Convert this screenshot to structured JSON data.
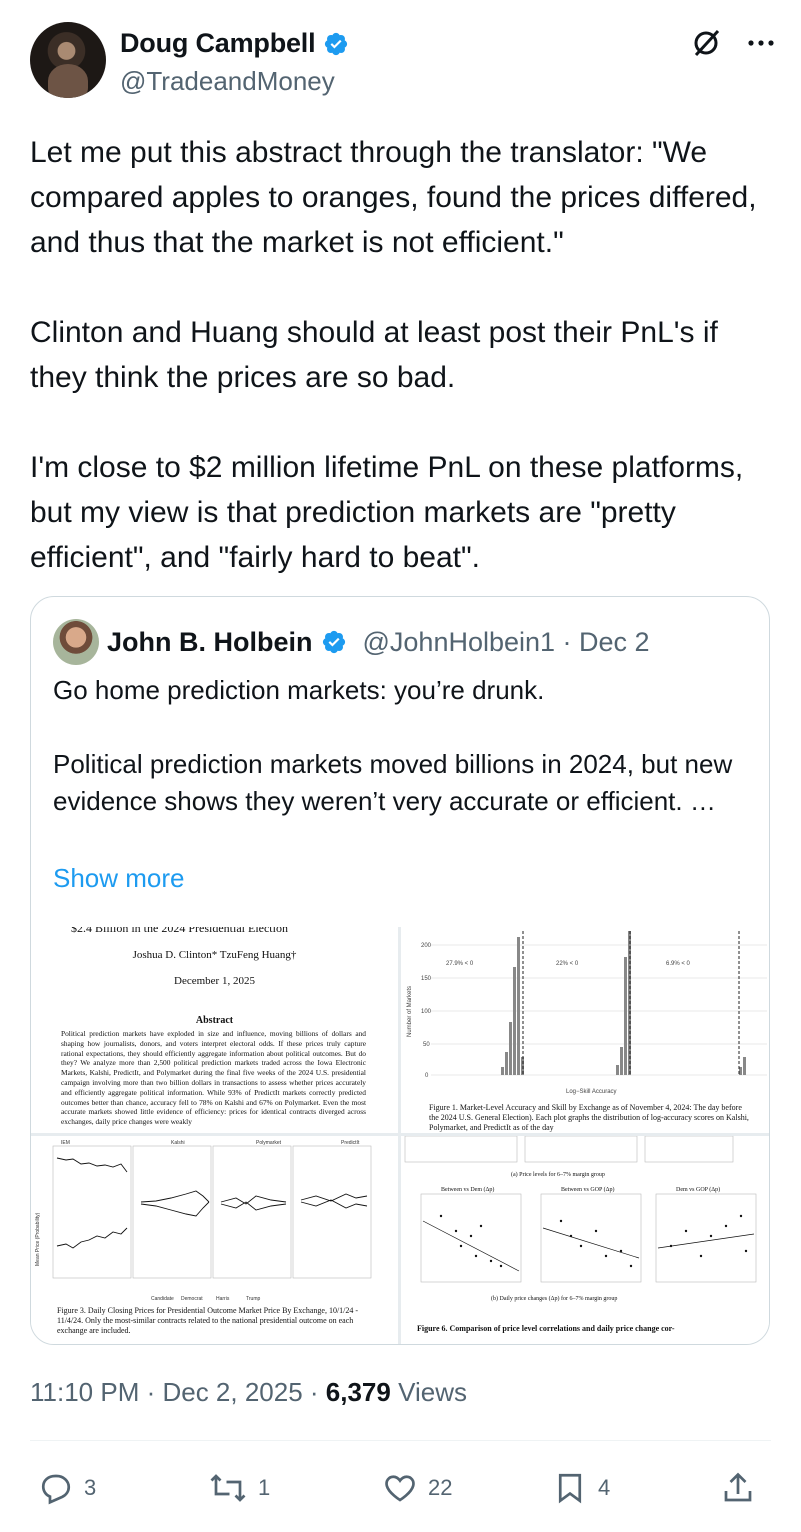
{
  "author": {
    "name": "Doug Campbell",
    "handle": "@TradeandMoney"
  },
  "tweet_text": "Let me put this abstract through the translator: \"We compared apples to oranges, found the prices differed, and thus that the market is not efficient.\"\n\nClinton and Huang should at least post their PnL's if they think the prices are so bad.\n\nI'm close to $2 million lifetime PnL on these platforms, but my view is that prediction markets are \"pretty efficient\", and \"fairly hard to beat\".",
  "quote": {
    "name": "John B. Holbein",
    "handle": "@JohnHolbein1 · Dec 2",
    "text": "Go home prediction markets: you’re drunk.\n\nPolitical prediction markets moved billions in 2024, but new evidence shows they weren’t very accurate or efficient. …",
    "show_more": "Show more",
    "paper": {
      "header_cut": "$2.4 Billion in the 2024 Presidential Election",
      "authors": "Joshua D. Clinton*          TzuFeng Huang†",
      "date": "December 1, 2025",
      "abstract_heading": "Abstract",
      "abstract": "Political prediction markets have exploded in size and influence, moving billions of dollars and shaping how journalists, donors, and voters interpret electoral odds. If these prices truly capture rational expectations, they should efficiently aggregate information about political outcomes. But do they? We analyze more than 2,500 political prediction markets traded across the Iowa Electronic Markets, Kalshi, PredictIt, and Polymarket during the final five weeks of the 2024 U.S. presidential campaign involving more than two billion dollars in transactions to assess whether prices accurately and efficiently aggregate political information. While 93% of PredictIt markets correctly predicted outcomes better than chance, accuracy fell to 78% on Kalshi and 67% on Polymarket. Even the most accurate markets showed little evidence of efficiency: prices for identical contracts diverged across exchanges, daily price changes were weakly"
    },
    "fig1": {
      "labels": [
        "27.9% < 0",
        "22% < 0",
        "6.9% < 0"
      ],
      "ylabel": "Number of Markets",
      "xlabel": "Log−Skill Accuracy",
      "yticks": [
        "200",
        "150",
        "100",
        "50",
        "0"
      ],
      "caption": "Figure 1. Market-Level Accuracy and Skill by Exchange as of November 4, 2024: The day before the 2024 U.S. General Election). Each plot graphs the distribution of log-accuracy scores on Kalshi, Polymarket, and PredictIt as of the day"
    },
    "fig3": {
      "panels": [
        "IEM",
        "Kalshi",
        "Polymarket",
        "PredictIt"
      ],
      "ylabel": "Mean Price (Probability)",
      "legend": [
        "Candidate",
        "Democrat",
        "Harris",
        "Trump"
      ],
      "caption": "Figure 3. Daily Closing Prices for Presidential Outcome Market Price By Exchange, 10/1/24 - 11/4/24. Only the most-similar contracts related to the national presidential outcome on each exchange are included."
    },
    "fig6": {
      "sub_a": "(a) Price levels for 6–7% margin group",
      "panels": [
        "Between vs Dem (Δp)",
        "Between vs GOP (Δp)",
        "Dem vs GOP (Δp)"
      ],
      "sub_b": "(b) Daily price changes (Δp) for 6–7% margin group",
      "caption": "Figure 6. Comparison of price level correlations and daily price change cor-"
    }
  },
  "timestamp": "11:10 PM · Dec 2, 2025 · ",
  "views_count": "6,379",
  "views_label": " Views",
  "actions": {
    "replies": "3",
    "reposts": "1",
    "likes": "22",
    "bookmarks": "4"
  },
  "colors": {
    "accent": "#1d9bf0",
    "text": "#0f1419",
    "muted": "#536471"
  }
}
